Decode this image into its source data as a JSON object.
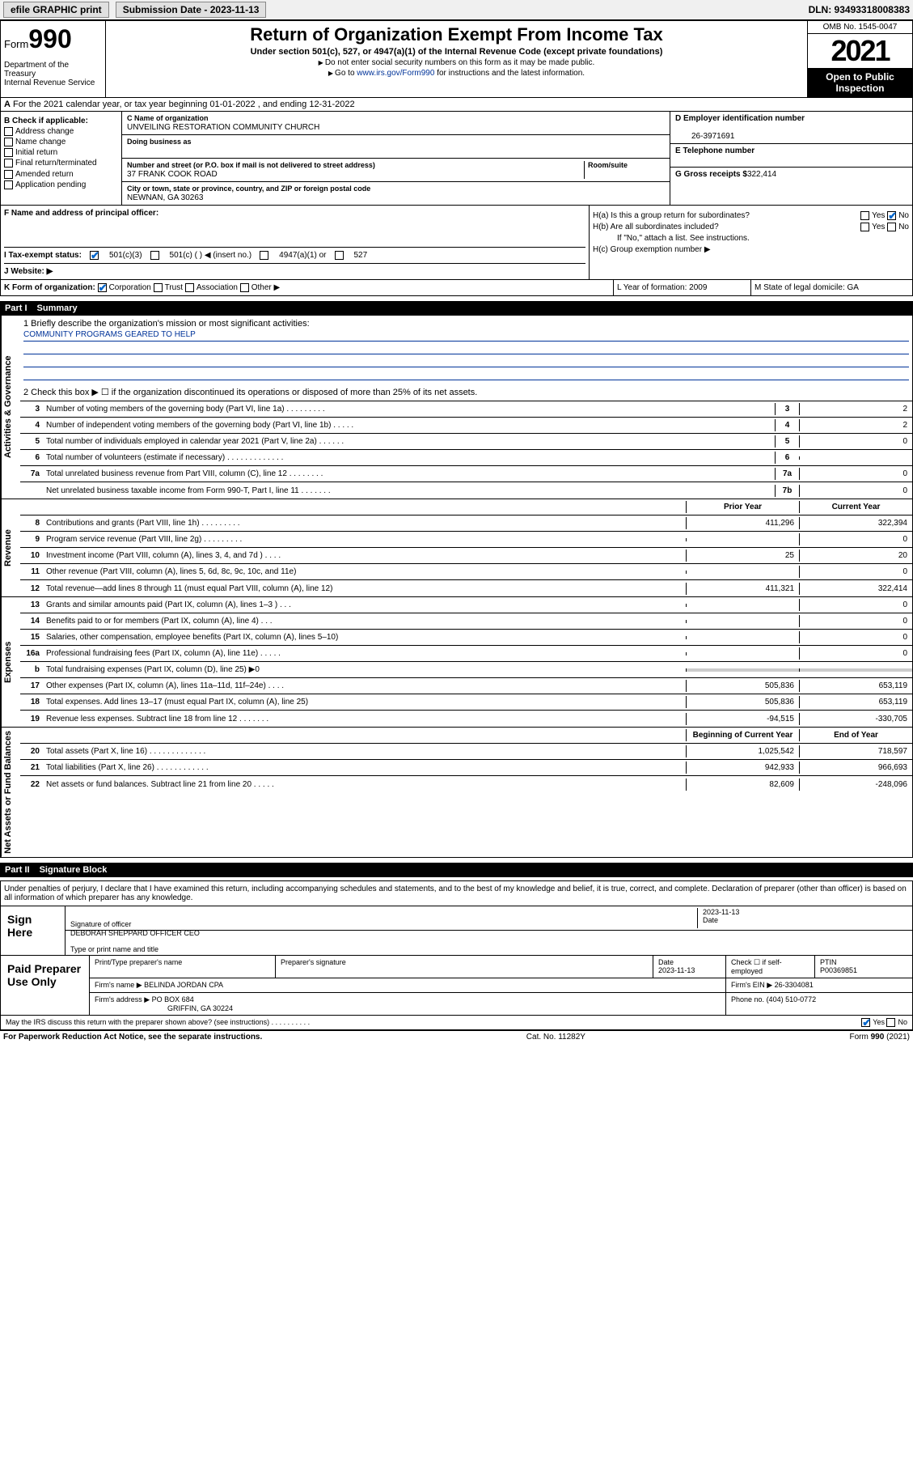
{
  "topbar": {
    "efile": "efile GRAPHIC print",
    "sub_label": "Submission Date - ",
    "sub_date": "2023-11-13",
    "dln": "DLN: 93493318008383"
  },
  "header": {
    "form_word": "Form",
    "form_num": "990",
    "dept": "Department of the Treasury",
    "irs": "Internal Revenue Service",
    "title": "Return of Organization Exempt From Income Tax",
    "subtitle": "Under section 501(c), 527, or 4947(a)(1) of the Internal Revenue Code (except private foundations)",
    "note1": "Do not enter social security numbers on this form as it may be made public.",
    "note2_pre": "Go to ",
    "note2_link": "www.irs.gov/Form990",
    "note2_post": " for instructions and the latest information.",
    "omb": "OMB No. 1545-0047",
    "year": "2021",
    "inspect": "Open to Public Inspection"
  },
  "row_a": "For the 2021 calendar year, or tax year beginning 01-01-2022  , and ending 12-31-2022",
  "col_b": {
    "hdr": "B Check if applicable:",
    "items": [
      "Address change",
      "Name change",
      "Initial return",
      "Final return/terminated",
      "Amended return",
      "Application pending"
    ]
  },
  "col_c": {
    "name_lbl": "C Name of organization",
    "name": "UNVEILING RESTORATION COMMUNITY CHURCH",
    "dba_lbl": "Doing business as",
    "addr_lbl": "Number and street (or P.O. box if mail is not delivered to street address)",
    "room_lbl": "Room/suite",
    "addr": "37 FRANK COOK ROAD",
    "city_lbl": "City or town, state or province, country, and ZIP or foreign postal code",
    "city": "NEWNAN, GA  30263"
  },
  "col_de": {
    "d_lbl": "D Employer identification number",
    "ein": "26-3971691",
    "e_lbl": "E Telephone number",
    "g_lbl": "G Gross receipts $",
    "g_val": "322,414"
  },
  "row_f": "F  Name and address of principal officer:",
  "col_h": {
    "ha": "H(a)  Is this a group return for subordinates?",
    "hb": "H(b)  Are all subordinates included?",
    "hb_note": "If \"No,\" attach a list. See instructions.",
    "hc": "H(c)  Group exemption number ▶",
    "yes": "Yes",
    "no": "No"
  },
  "row_i": {
    "lbl": "I  Tax-exempt status:",
    "o1": "501(c)(3)",
    "o2": "501(c) (   ) ◀ (insert no.)",
    "o3": "4947(a)(1) or",
    "o4": "527"
  },
  "row_j": "J  Website: ▶",
  "row_k": {
    "k": "K Form of organization:",
    "k_opts": [
      "Corporation",
      "Trust",
      "Association",
      "Other ▶"
    ],
    "l": "L Year of formation: 2009",
    "m": "M State of legal domicile: GA"
  },
  "part1": {
    "num": "Part I",
    "title": "Summary"
  },
  "mission": {
    "q1": "1  Briefly describe the organization's mission or most significant activities:",
    "text": "COMMUNITY PROGRAMS GEARED TO HELP",
    "q2": "2  Check this box ▶ ☐  if the organization discontinued its operations or disposed of more than 25% of its net assets."
  },
  "gov_rows": [
    {
      "n": "3",
      "d": "Number of voting members of the governing body (Part VI, line 1a)  .   .   .   .   .   .   .   .   .",
      "b": "3",
      "v": "2"
    },
    {
      "n": "4",
      "d": "Number of independent voting members of the governing body (Part VI, line 1b)   .   .   .   .   .",
      "b": "4",
      "v": "2"
    },
    {
      "n": "5",
      "d": "Total number of individuals employed in calendar year 2021 (Part V, line 2a)   .   .   .   .   .   .",
      "b": "5",
      "v": "0"
    },
    {
      "n": "6",
      "d": "Total number of volunteers (estimate if necessary)   .   .   .   .   .   .   .   .   .   .   .   .   .",
      "b": "6",
      "v": ""
    },
    {
      "n": "7a",
      "d": "Total unrelated business revenue from Part VIII, column (C), line 12   .   .   .   .   .   .   .   .",
      "b": "7a",
      "v": "0"
    },
    {
      "n": "",
      "d": "Net unrelated business taxable income from Form 990-T, Part I, line 11   .   .   .   .   .   .   .",
      "b": "7b",
      "v": "0"
    }
  ],
  "two_col_hdr": {
    "prior": "Prior Year",
    "current": "Current Year"
  },
  "rev_rows": [
    {
      "n": "8",
      "d": "Contributions and grants (Part VIII, line 1h)   .   .   .   .   .   .   .   .   .",
      "p": "411,296",
      "c": "322,394"
    },
    {
      "n": "9",
      "d": "Program service revenue (Part VIII, line 2g)   .   .   .   .   .   .   .   .   .",
      "p": "",
      "c": "0"
    },
    {
      "n": "10",
      "d": "Investment income (Part VIII, column (A), lines 3, 4, and 7d )   .   .   .   .",
      "p": "25",
      "c": "20"
    },
    {
      "n": "11",
      "d": "Other revenue (Part VIII, column (A), lines 5, 6d, 8c, 9c, 10c, and 11e)",
      "p": "",
      "c": "0"
    },
    {
      "n": "12",
      "d": "Total revenue—add lines 8 through 11 (must equal Part VIII, column (A), line 12)",
      "p": "411,321",
      "c": "322,414"
    }
  ],
  "exp_rows": [
    {
      "n": "13",
      "d": "Grants and similar amounts paid (Part IX, column (A), lines 1–3 )   .   .   .",
      "p": "",
      "c": "0"
    },
    {
      "n": "14",
      "d": "Benefits paid to or for members (Part IX, column (A), line 4)   .   .   .",
      "p": "",
      "c": "0"
    },
    {
      "n": "15",
      "d": "Salaries, other compensation, employee benefits (Part IX, column (A), lines 5–10)",
      "p": "",
      "c": "0"
    },
    {
      "n": "16a",
      "d": "Professional fundraising fees (Part IX, column (A), line 11e)   .   .   .   .   .",
      "p": "",
      "c": "0"
    },
    {
      "n": "b",
      "d": "Total fundraising expenses (Part IX, column (D), line 25) ▶0",
      "p": "SHADE",
      "c": "SHADE"
    },
    {
      "n": "17",
      "d": "Other expenses (Part IX, column (A), lines 11a–11d, 11f–24e)   .   .   .   .",
      "p": "505,836",
      "c": "653,119"
    },
    {
      "n": "18",
      "d": "Total expenses. Add lines 13–17 (must equal Part IX, column (A), line 25)",
      "p": "505,836",
      "c": "653,119"
    },
    {
      "n": "19",
      "d": "Revenue less expenses. Subtract line 18 from line 12   .   .   .   .   .   .   .",
      "p": "-94,515",
      "c": "-330,705"
    }
  ],
  "net_hdr": {
    "beg": "Beginning of Current Year",
    "end": "End of Year"
  },
  "net_rows": [
    {
      "n": "20",
      "d": "Total assets (Part X, line 16)   .   .   .   .   .   .   .   .   .   .   .   .   .",
      "p": "1,025,542",
      "c": "718,597"
    },
    {
      "n": "21",
      "d": "Total liabilities (Part X, line 26)   .   .   .   .   .   .   .   .   .   .   .   .",
      "p": "942,933",
      "c": "966,693"
    },
    {
      "n": "22",
      "d": "Net assets or fund balances. Subtract line 21 from line 20   .   .   .   .   .",
      "p": "82,609",
      "c": "-248,096"
    }
  ],
  "part2": {
    "num": "Part II",
    "title": "Signature Block"
  },
  "sig": {
    "decl": "Under penalties of perjury, I declare that I have examined this return, including accompanying schedules and statements, and to the best of my knowledge and belief, it is true, correct, and complete. Declaration of preparer (other than officer) is based on all information of which preparer has any knowledge.",
    "sign_here": "Sign Here",
    "sig_officer": "Signature of officer",
    "date": "Date",
    "sig_date": "2023-11-13",
    "name": "DEBORAH SHEPPARD OFFICER CEO",
    "name_lbl": "Type or print name and title"
  },
  "prep": {
    "label": "Paid Preparer Use Only",
    "h1": "Print/Type preparer's name",
    "h2": "Preparer's signature",
    "h3": "Date",
    "h3v": "2023-11-13",
    "h4": "Check ☐ if self-employed",
    "h5": "PTIN",
    "h5v": "P00369851",
    "firm_lbl": "Firm's name    ▶",
    "firm": "BELINDA JORDAN CPA",
    "ein_lbl": "Firm's EIN ▶",
    "ein": "26-3304081",
    "addr_lbl": "Firm's address ▶",
    "addr1": "PO BOX 684",
    "addr2": "GRIFFIN, GA  30224",
    "phone_lbl": "Phone no.",
    "phone": "(404) 510-0772",
    "discuss": "May the IRS discuss this return with the preparer shown above? (see instructions)   .   .   .   .   .   .   .   .   .   ."
  },
  "footer": {
    "left": "For Paperwork Reduction Act Notice, see the separate instructions.",
    "mid": "Cat. No. 11282Y",
    "right": "Form 990 (2021)"
  },
  "vtabs": {
    "gov": "Activities & Governance",
    "rev": "Revenue",
    "exp": "Expenses",
    "net": "Net Assets or Fund Balances"
  }
}
